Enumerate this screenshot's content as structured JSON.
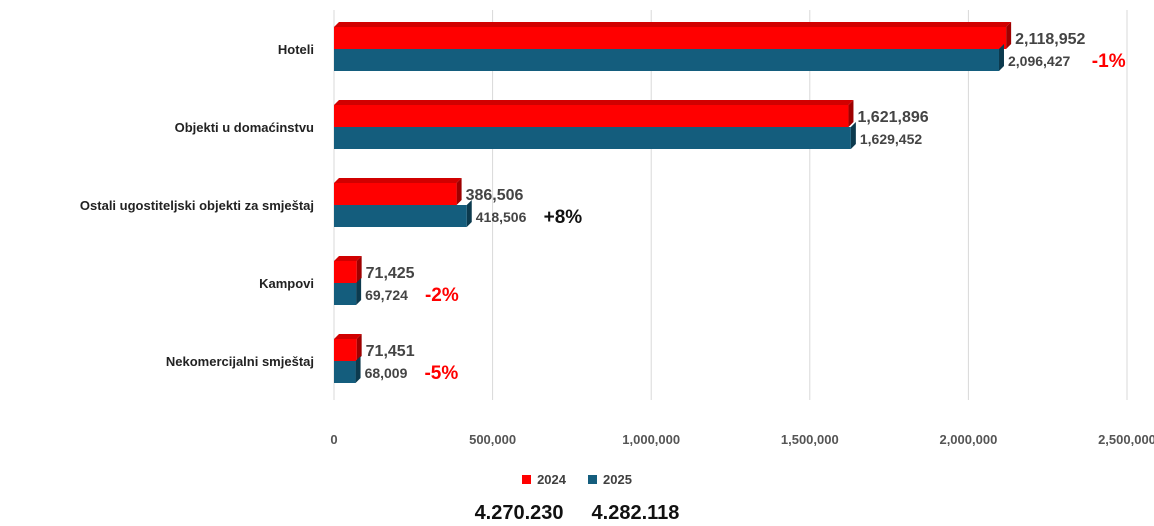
{
  "chart_data": {
    "type": "bar",
    "orientation": "horizontal",
    "categories": [
      "Hoteli",
      "Objekti u domaćinstvu",
      "Ostali ugostiteljski objekti za smještaj",
      "Kampovi",
      "Nekomercijalni smještaj"
    ],
    "series": [
      {
        "name": "2024",
        "color": "#ff0000",
        "values": [
          2118952,
          1621896,
          386506,
          71425,
          71451
        ],
        "labels": [
          "2,118,952",
          "1,621,896",
          "386,506",
          "71,425",
          "71,451"
        ]
      },
      {
        "name": "2025",
        "color": "#145d7d",
        "values": [
          2096427,
          1629452,
          418506,
          69724,
          68009
        ],
        "labels": [
          "2,096,427",
          "1,629,452",
          "418,506",
          "69,724",
          "68,009"
        ]
      }
    ],
    "changes": [
      "-1%",
      "",
      "+8%",
      "-2%",
      "-5%"
    ],
    "change_colors": [
      "#ff0000",
      "",
      "#111111",
      "#ff0000",
      "#ff0000"
    ],
    "xlim": [
      0,
      2500000
    ],
    "x_ticks": [
      0,
      500000,
      1000000,
      1500000,
      2000000,
      2500000
    ],
    "x_tick_labels": [
      "0",
      "500,000",
      "1,000,000",
      "1,500,000",
      "2,000,000",
      "2,500,000"
    ],
    "grid": true,
    "legend_position": "bottom"
  },
  "legend": {
    "items": [
      {
        "label": "2024",
        "color": "#ff0000"
      },
      {
        "label": "2025",
        "color": "#145d7d"
      }
    ]
  },
  "totals": {
    "total_2024": "4.270.230",
    "total_2025": "4.282.118"
  }
}
